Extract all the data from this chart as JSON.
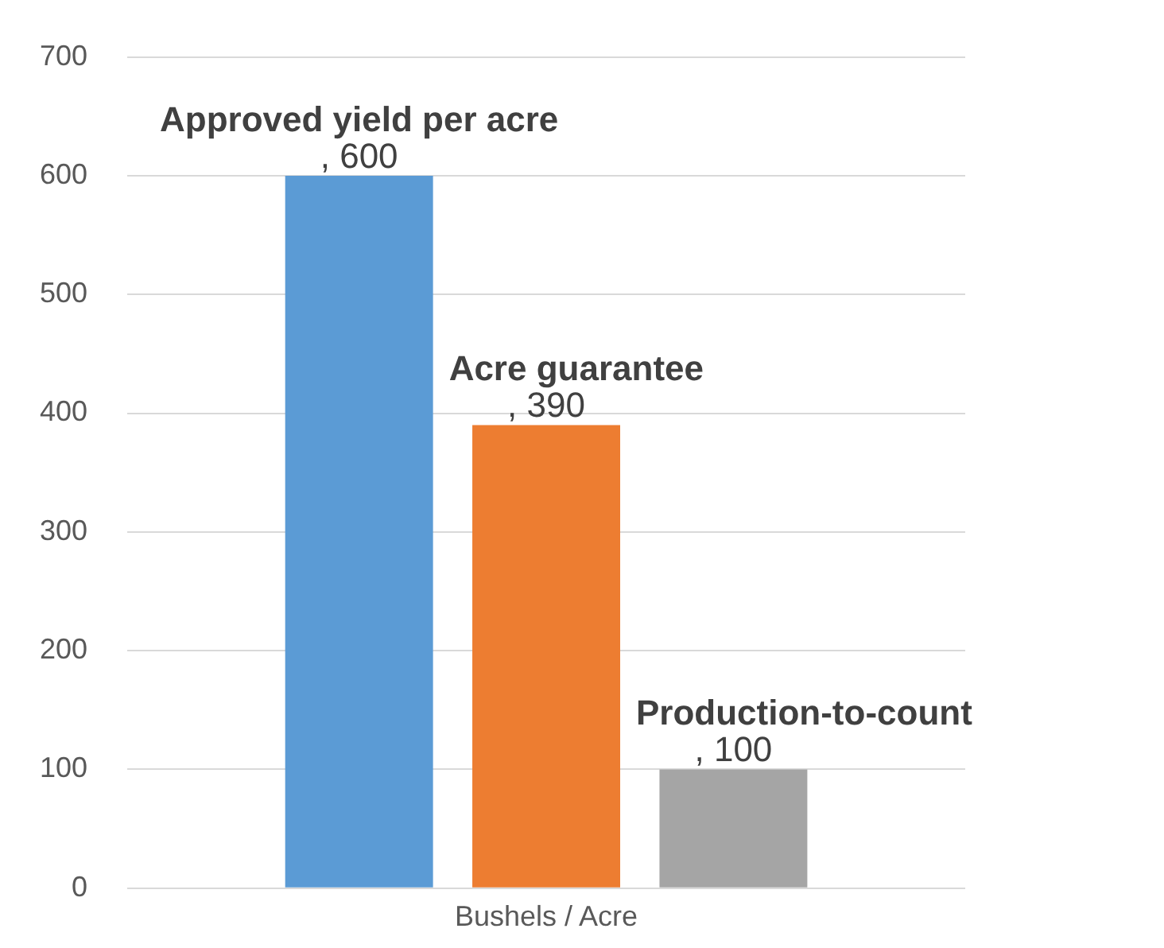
{
  "chart_data": {
    "type": "bar",
    "categories": [
      "Bushels / Acre"
    ],
    "series": [
      {
        "name": "Approved yield per acre",
        "color": "#5b9bd5",
        "values": [
          600
        ],
        "value_labels": [
          ", 600"
        ]
      },
      {
        "name": "Acre guarantee",
        "color": "#ed7d31",
        "values": [
          390
        ],
        "value_labels": [
          ", 390"
        ]
      },
      {
        "name": "Production-to-count",
        "color": "#a5a5a5",
        "values": [
          100
        ],
        "value_labels": [
          ", 100"
        ]
      }
    ],
    "ylim": [
      0,
      700
    ],
    "yticks": [
      0,
      100,
      200,
      300,
      400,
      500,
      600,
      700
    ],
    "grid": "y",
    "legend": false
  }
}
